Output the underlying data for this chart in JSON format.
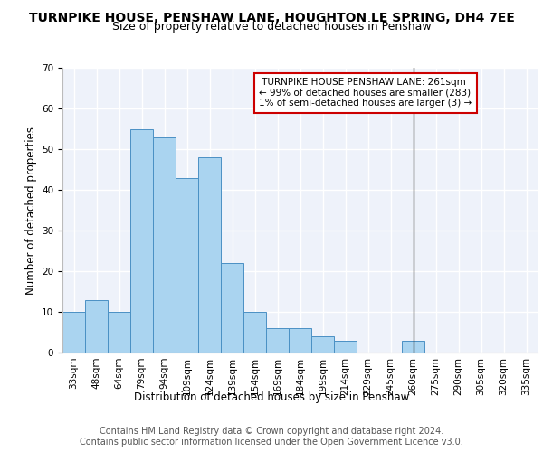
{
  "title": "TURNPIKE HOUSE, PENSHAW LANE, HOUGHTON LE SPRING, DH4 7EE",
  "subtitle": "Size of property relative to detached houses in Penshaw",
  "xlabel": "Distribution of detached houses by size in Penshaw",
  "ylabel": "Number of detached properties",
  "footer_line1": "Contains HM Land Registry data © Crown copyright and database right 2024.",
  "footer_line2": "Contains public sector information licensed under the Open Government Licence v3.0.",
  "categories": [
    "33sqm",
    "48sqm",
    "64sqm",
    "79sqm",
    "94sqm",
    "109sqm",
    "124sqm",
    "139sqm",
    "154sqm",
    "169sqm",
    "184sqm",
    "199sqm",
    "214sqm",
    "229sqm",
    "245sqm",
    "260sqm",
    "275sqm",
    "290sqm",
    "305sqm",
    "320sqm",
    "335sqm"
  ],
  "values": [
    10,
    13,
    10,
    55,
    53,
    43,
    48,
    22,
    10,
    6,
    6,
    4,
    3,
    0,
    0,
    3,
    0,
    0,
    0,
    0,
    0
  ],
  "bar_color": "#aad4f0",
  "bar_edge_color": "#4a90c4",
  "vline_x": 15,
  "vline_color": "#333333",
  "annotation_line1": " TURNPIKE HOUSE PENSHAW LANE: 261sqm",
  "annotation_line2": "← 99% of detached houses are smaller (283)",
  "annotation_line3": "1% of semi-detached houses are larger (3) →",
  "annotation_box_color": "#ffffff",
  "annotation_border_color": "#cc0000",
  "ylim": [
    0,
    70
  ],
  "yticks": [
    0,
    10,
    20,
    30,
    40,
    50,
    60,
    70
  ],
  "bg_color": "#eef2fa",
  "grid_color": "#ffffff",
  "title_fontsize": 10,
  "subtitle_fontsize": 9,
  "axis_label_fontsize": 8.5,
  "tick_fontsize": 7.5,
  "footer_fontsize": 7
}
